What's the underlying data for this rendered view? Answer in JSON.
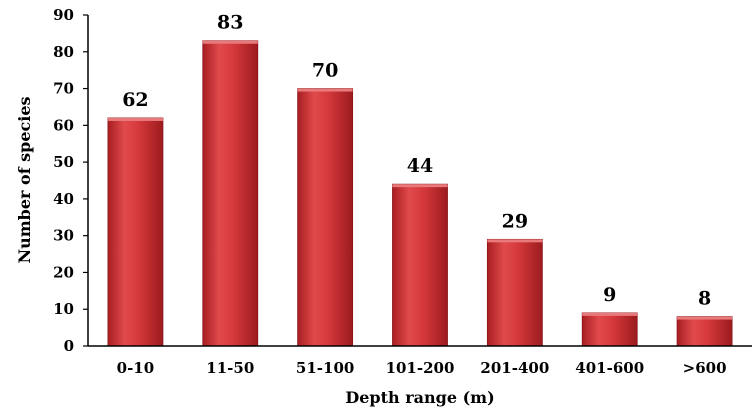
{
  "chart_data": {
    "type": "bar",
    "categories": [
      "0-10",
      "11-50",
      "51-100",
      "101-200",
      "201-400",
      "401-600",
      ">600"
    ],
    "values": [
      62,
      83,
      70,
      44,
      29,
      9,
      8
    ],
    "data_labels": [
      "62",
      "83",
      "70",
      "44",
      "29",
      "9",
      "8"
    ],
    "title": "",
    "xlabel": "Depth range (m)",
    "ylabel": "Number of species",
    "ylim": [
      0,
      90
    ],
    "yticks": [
      0,
      10,
      20,
      30,
      40,
      50,
      60,
      70,
      80,
      90
    ],
    "grid": false,
    "legend": "none",
    "bar_color": "#d23a3c"
  }
}
